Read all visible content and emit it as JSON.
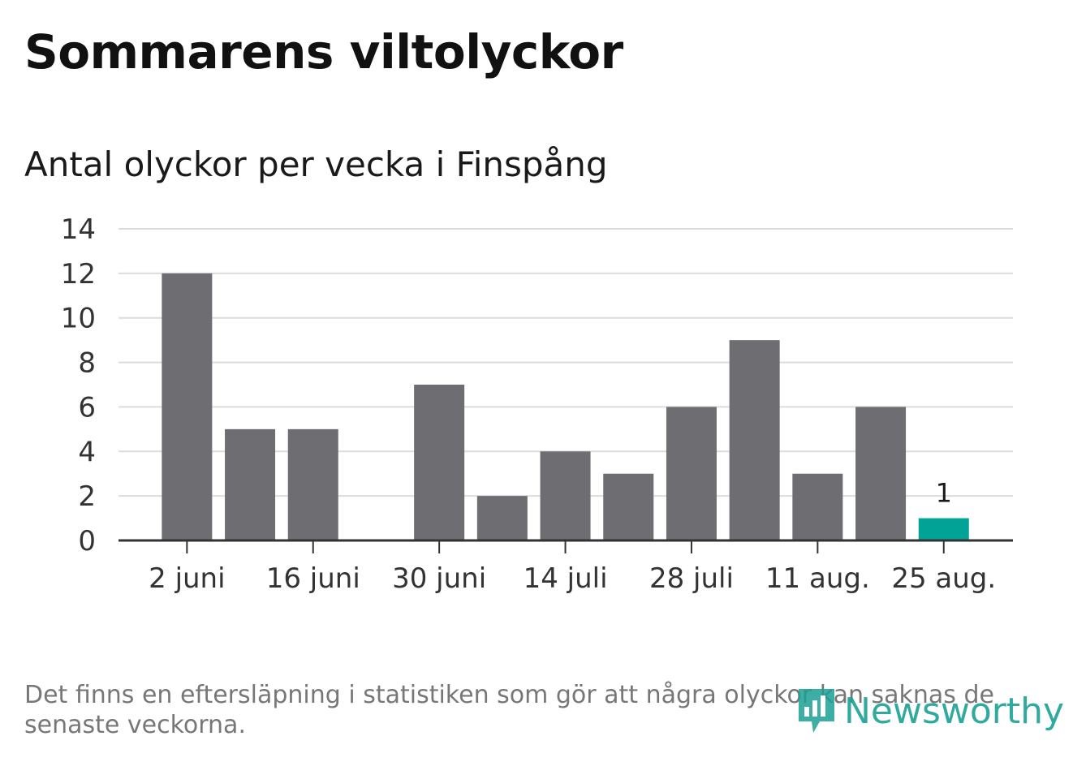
{
  "title": "Sommarens viltolyckor",
  "subtitle": "Antal olyckor per vecka i Finspång",
  "footnote": "Det finns en eftersläpning i statistiken som gör att några olyckor kan saknas de senaste veckorna.",
  "logo_text": "Newsworthy",
  "colors": {
    "bar": "#6e6d72",
    "highlight": "#00a396",
    "grid": "#dcdcdc",
    "axis": "#333333"
  },
  "chart_data": {
    "type": "bar",
    "title": "Antal olyckor per vecka i Finspång",
    "xlabel": "",
    "ylabel": "",
    "ylim": [
      0,
      14
    ],
    "yticks": [
      "0",
      "2",
      "4",
      "6",
      "8",
      "10",
      "12",
      "14"
    ],
    "grid": true,
    "x_tick_labels": [
      {
        "index": 0,
        "label": "2 juni"
      },
      {
        "index": 2,
        "label": "16 juni"
      },
      {
        "index": 4,
        "label": "30 juni"
      },
      {
        "index": 6,
        "label": "14 juli"
      },
      {
        "index": 8,
        "label": "28 juli"
      },
      {
        "index": 10,
        "label": "11 aug."
      },
      {
        "index": 12,
        "label": "25 aug."
      }
    ],
    "values": [
      12,
      5,
      5,
      0,
      7,
      2,
      4,
      3,
      6,
      9,
      3,
      6,
      1
    ],
    "highlight_index": 12,
    "data_labels": [
      {
        "index": 12,
        "label": "1"
      }
    ]
  }
}
